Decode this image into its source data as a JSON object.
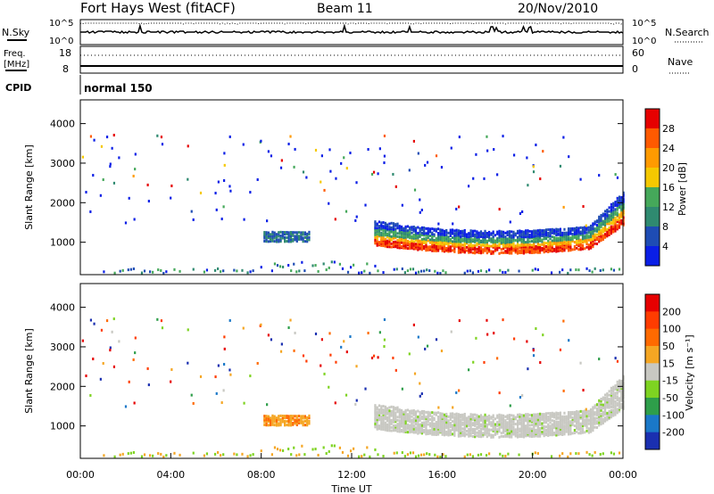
{
  "header": {
    "station": "Fort Hays West (fitACF)",
    "beam": "Beam 11",
    "date": "20/Nov/2010"
  },
  "noise_panel": {
    "left_label": "N.Sky",
    "right_label": "N.Search",
    "tick_top": "10^5",
    "tick_bottom": "10^0"
  },
  "freq_panel": {
    "left_label_line1": "Freq.",
    "left_label_line2": "[MHz]",
    "right_label": "Nave",
    "left_ticks": [
      "18",
      "8"
    ],
    "right_ticks": [
      "60",
      "0"
    ]
  },
  "cpid_panel": {
    "label": "CPID",
    "mode": "normal 150"
  },
  "chart_data": [
    {
      "type": "heatmap",
      "quantity": "Power",
      "ylabel": "Slant Range [km]",
      "xlabel": "Time UT",
      "y_ticks": [
        "1000",
        "2000",
        "3000",
        "4000"
      ],
      "ylim": [
        180,
        4600
      ],
      "colorbar_label": "Power [dB]",
      "colorbar_ticks": [
        "4",
        "8",
        "12",
        "16",
        "20",
        "24",
        "28"
      ],
      "colorbar_colors": [
        "#0a1ee6",
        "#1e4cb4",
        "#2f8a70",
        "#45a85a",
        "#f5c800",
        "#ff9a00",
        "#ff5a00",
        "#e60000"
      ],
      "colorbar_range": [
        0,
        32
      ]
    },
    {
      "type": "heatmap",
      "quantity": "Velocity",
      "ylabel": "Slant Range [km]",
      "xlabel": "Time UT",
      "y_ticks": [
        "1000",
        "2000",
        "3000",
        "4000"
      ],
      "ylim": [
        180,
        4600
      ],
      "colorbar_label": "Velocity [m s⁻¹]",
      "colorbar_ticks": [
        "200",
        "100",
        "50",
        "15",
        "-15",
        "-50",
        "-100",
        "-200"
      ],
      "colorbar_colors": [
        "#1a2fb0",
        "#1a78c8",
        "#2e9e4a",
        "#7ed321",
        "#c8c8c2",
        "#f5a623",
        "#ff6a00",
        "#ff3c00",
        "#e60000"
      ]
    }
  ],
  "x_ticks": [
    "00:00",
    "04:00",
    "08:00",
    "12:00",
    "16:00",
    "20:00",
    "00:00"
  ],
  "x_label": "Time UT"
}
